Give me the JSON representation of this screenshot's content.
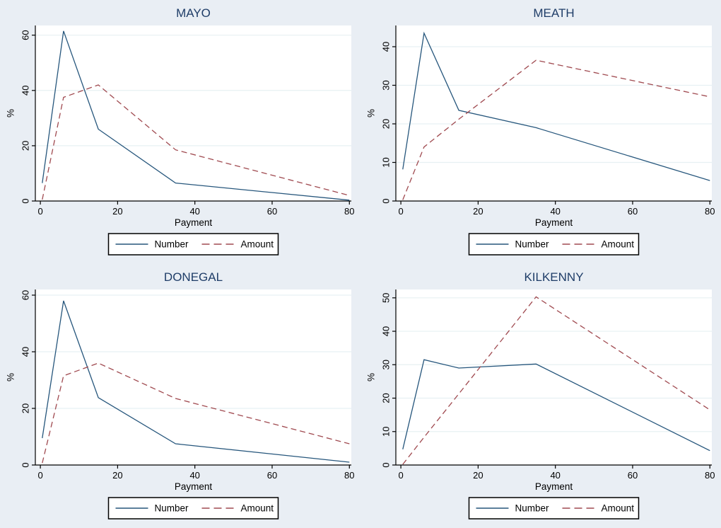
{
  "figure": {
    "background": "#e9eef4",
    "plot_background": "#ffffff",
    "grid_color": "#e7f0f3",
    "axis_color": "#000000",
    "text_color": "#000000",
    "title_color": "#1f3d68",
    "series_colors": {
      "Number": "#26567c",
      "Amount": "#a04a50"
    }
  },
  "chart_data": [
    {
      "type": "line",
      "title": "MAYO",
      "xlabel": "Payment",
      "ylabel": "%",
      "xlim": [
        -1.3,
        80.5
      ],
      "ylim": [
        0,
        63.5
      ],
      "xticks": [
        0,
        20,
        40,
        60,
        80
      ],
      "yticks": [
        0,
        20,
        40,
        60
      ],
      "x": [
        0.5,
        6,
        15,
        35,
        80
      ],
      "series": [
        {
          "name": "Number",
          "dash": false,
          "values": [
            6.5,
            61.5,
            26,
            6.5,
            0.3
          ]
        },
        {
          "name": "Amount",
          "dash": true,
          "values": [
            0.5,
            37.5,
            42,
            18.5,
            2
          ]
        }
      ],
      "legend": {
        "position": "bottom",
        "entries": [
          "Number",
          "Amount"
        ]
      }
    },
    {
      "type": "line",
      "title": "MEATH",
      "xlabel": "Payment",
      "ylabel": "%",
      "xlim": [
        -1.3,
        80.5
      ],
      "ylim": [
        0,
        45.5
      ],
      "xticks": [
        0,
        20,
        40,
        60,
        80
      ],
      "yticks": [
        0,
        10,
        20,
        30,
        40
      ],
      "x": [
        0.5,
        6,
        15,
        35,
        80
      ],
      "series": [
        {
          "name": "Number",
          "dash": false,
          "values": [
            8.2,
            43.5,
            23.5,
            19,
            5.3
          ]
        },
        {
          "name": "Amount",
          "dash": true,
          "values": [
            0.3,
            14,
            21.2,
            36.5,
            27
          ]
        }
      ],
      "legend": {
        "position": "bottom",
        "entries": [
          "Number",
          "Amount"
        ]
      }
    },
    {
      "type": "line",
      "title": "DONEGAL",
      "xlabel": "Payment",
      "ylabel": "%",
      "xlim": [
        -1.3,
        80.5
      ],
      "ylim": [
        0,
        62
      ],
      "xticks": [
        0,
        20,
        40,
        60,
        80
      ],
      "yticks": [
        0,
        20,
        40,
        60
      ],
      "x": [
        0.5,
        6,
        15,
        35,
        80
      ],
      "series": [
        {
          "name": "Number",
          "dash": false,
          "values": [
            9.5,
            58,
            23.8,
            7.5,
            1
          ]
        },
        {
          "name": "Amount",
          "dash": true,
          "values": [
            0.7,
            31.5,
            36,
            23.5,
            7.5
          ]
        }
      ],
      "legend": {
        "position": "bottom",
        "entries": [
          "Number",
          "Amount"
        ]
      }
    },
    {
      "type": "line",
      "title": "KILKENNY",
      "xlabel": "Payment",
      "ylabel": "%",
      "xlim": [
        -1.3,
        80.5
      ],
      "ylim": [
        0,
        52.5
      ],
      "xticks": [
        0,
        20,
        40,
        60,
        80
      ],
      "yticks": [
        0,
        10,
        20,
        30,
        40,
        50
      ],
      "x": [
        0.5,
        6,
        15,
        35,
        80
      ],
      "series": [
        {
          "name": "Number",
          "dash": false,
          "values": [
            4.7,
            31.5,
            29,
            30.2,
            4.3
          ]
        },
        {
          "name": "Amount",
          "dash": true,
          "values": [
            0.2,
            8.3,
            21.3,
            50.3,
            16.5
          ]
        }
      ],
      "legend": {
        "position": "bottom",
        "entries": [
          "Number",
          "Amount"
        ]
      }
    }
  ]
}
